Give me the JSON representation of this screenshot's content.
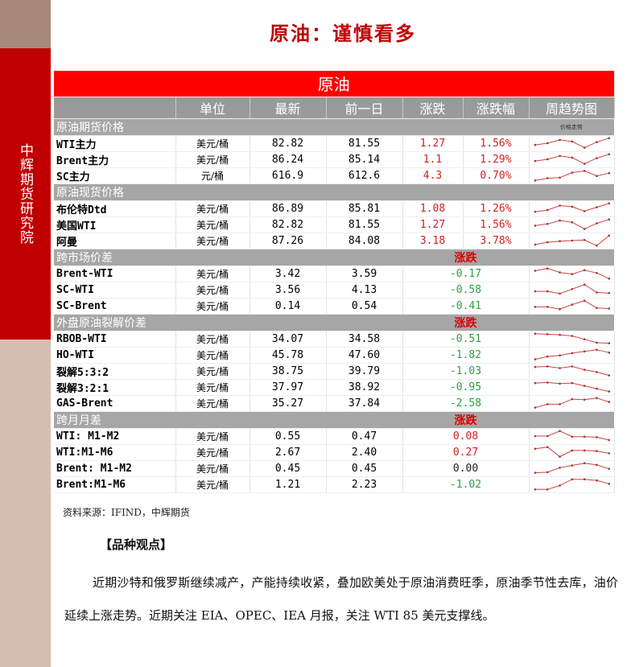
{
  "sidebar": {
    "org": "中辉期货研究院"
  },
  "title": "原油：谨慎看多",
  "table": {
    "caption": "原油",
    "headers": [
      "",
      "单位",
      "最新",
      "前一日",
      "涨跌",
      "涨跌幅",
      "周趋势图"
    ],
    "trend_note": "价格走势",
    "colors": {
      "up": "#d42020",
      "down": "#2aa040",
      "header": "#9a9a9a",
      "caption": "#ff0000"
    },
    "sections": [
      {
        "title": "原油期货价格",
        "change_label": "",
        "rows": [
          {
            "name": "WTI主力",
            "unit": "美元/桶",
            "latest": "82.82",
            "prev": "81.55",
            "change": "1.27",
            "pct": "1.56%",
            "dir": "up",
            "trend": [
              0.35,
              0.5,
              0.8,
              0.65,
              0.1,
              0.6,
              0.95
            ]
          },
          {
            "name": "Brent主力",
            "unit": "美元/桶",
            "latest": "86.24",
            "prev": "85.14",
            "change": "1.1",
            "pct": "1.29%",
            "dir": "up",
            "trend": [
              0.35,
              0.5,
              0.8,
              0.65,
              0.1,
              0.6,
              0.95
            ]
          },
          {
            "name": "SC主力",
            "unit": "元/桶",
            "latest": "616.9",
            "prev": "612.6",
            "change": "4.3",
            "pct": "0.70%",
            "dir": "up",
            "trend": [
              0.05,
              0.25,
              0.3,
              0.75,
              0.9,
              0.45,
              0.7
            ]
          }
        ]
      },
      {
        "title": "原油现货价格",
        "change_label": "",
        "rows": [
          {
            "name": "布伦特Dtd",
            "unit": "美元/桶",
            "latest": "86.89",
            "prev": "85.81",
            "change": "1.08",
            "pct": "1.26%",
            "dir": "up",
            "trend": [
              0.2,
              0.35,
              0.75,
              0.65,
              0.25,
              0.6,
              0.95
            ]
          },
          {
            "name": "美国WTI",
            "unit": "美元/桶",
            "latest": "82.82",
            "prev": "81.55",
            "change": "1.27",
            "pct": "1.56%",
            "dir": "up",
            "trend": [
              0.4,
              0.55,
              0.85,
              0.7,
              0.1,
              0.6,
              0.95
            ]
          },
          {
            "name": "阿曼",
            "unit": "美元/桶",
            "latest": "87.26",
            "prev": "84.08",
            "change": "3.18",
            "pct": "3.78%",
            "dir": "up",
            "trend": [
              0.15,
              0.35,
              0.45,
              0.5,
              0.55,
              0.05,
              0.95
            ]
          }
        ]
      },
      {
        "title": "跨市场价差",
        "change_label": "涨跌",
        "rows": [
          {
            "name": "Brent-WTI",
            "unit": "美元/桶",
            "latest": "3.42",
            "prev": "3.59",
            "change": "-0.17",
            "dir": "down",
            "trend": [
              0.75,
              0.95,
              0.6,
              0.45,
              0.8,
              0.55,
              0.05
            ]
          },
          {
            "name": "SC-WTI",
            "unit": "美元/桶",
            "latest": "3.56",
            "prev": "4.13",
            "change": "-0.58",
            "dir": "down",
            "trend": [
              0.35,
              0.35,
              0.15,
              0.55,
              0.95,
              0.25,
              0.2
            ]
          },
          {
            "name": "SC-Brent",
            "unit": "美元/桶",
            "latest": "0.14",
            "prev": "0.54",
            "change": "-0.41",
            "dir": "down",
            "trend": [
              0.4,
              0.4,
              0.2,
              0.6,
              0.95,
              0.3,
              0.25
            ]
          }
        ]
      },
      {
        "title": "外盘原油裂解价差",
        "change_label": "涨跌",
        "rows": [
          {
            "name": "RBOB-WTI",
            "unit": "美元/桶",
            "latest": "34.07",
            "prev": "34.58",
            "change": "-0.51",
            "dir": "down",
            "trend": [
              0.95,
              0.9,
              0.85,
              0.75,
              0.45,
              0.15,
              0.1
            ]
          },
          {
            "name": "HO-WTI",
            "unit": "美元/桶",
            "latest": "45.78",
            "prev": "47.60",
            "change": "-1.82",
            "dir": "down",
            "trend": [
              0.1,
              0.35,
              0.45,
              0.65,
              0.8,
              0.95,
              0.7
            ]
          },
          {
            "name": "裂解5:3:2",
            "unit": "美元/桶",
            "latest": "38.75",
            "prev": "39.79",
            "change": "-1.03",
            "dir": "down",
            "trend": [
              0.85,
              0.9,
              0.75,
              0.9,
              0.6,
              0.4,
              0.1
            ]
          },
          {
            "name": "裂解3:2:1",
            "unit": "美元/桶",
            "latest": "37.97",
            "prev": "38.92",
            "change": "-0.95",
            "dir": "down",
            "trend": [
              0.85,
              0.9,
              0.8,
              0.85,
              0.6,
              0.35,
              0.1
            ]
          },
          {
            "name": "GAS-Brent",
            "unit": "美元/桶",
            "latest": "35.27",
            "prev": "37.84",
            "change": "-2.58",
            "dir": "down",
            "trend": [
              0.1,
              0.4,
              0.4,
              0.85,
              0.8,
              0.95,
              0.6
            ]
          }
        ]
      },
      {
        "title": "跨月月差",
        "change_label": "涨跌",
        "rows": [
          {
            "name": "WTI: M1-M2",
            "unit": "美元/桶",
            "latest": "0.55",
            "prev": "0.47",
            "change": "0.08",
            "dir": "up",
            "trend": [
              0.5,
              0.5,
              0.95,
              0.45,
              0.45,
              0.4,
              0.15
            ]
          },
          {
            "name": "WTI:M1-M6",
            "unit": "美元/桶",
            "latest": "2.67",
            "prev": "2.40",
            "change": "0.27",
            "dir": "up",
            "trend": [
              0.8,
              0.95,
              0.1,
              0.65,
              0.65,
              0.6,
              0.4
            ]
          },
          {
            "name": "Brent: M1-M2",
            "unit": "美元/桶",
            "latest": "0.45",
            "prev": "0.45",
            "change": "0.00",
            "dir": "flat",
            "trend": [
              0.1,
              0.15,
              0.55,
              0.75,
              0.95,
              0.8,
              0.45
            ]
          },
          {
            "name": "Brent:M1-M6",
            "unit": "美元/桶",
            "latest": "1.21",
            "prev": "2.23",
            "change": "-1.02",
            "dir": "down",
            "trend": [
              0.05,
              0.05,
              0.4,
              0.95,
              0.95,
              0.85,
              0.55
            ]
          }
        ]
      }
    ]
  },
  "source": "资料来源：IFIND，中辉期货",
  "viewpoint_title": "【品种观点】",
  "viewpoint_text": "近期沙特和俄罗斯继续减产，产能持续收紧，叠加欧美处于原油消费旺季，原油季节性去库，油价延续上涨走势。近期关注 EIA、OPEC、IEA 月报，关注 WTI 85 美元支撑线。"
}
